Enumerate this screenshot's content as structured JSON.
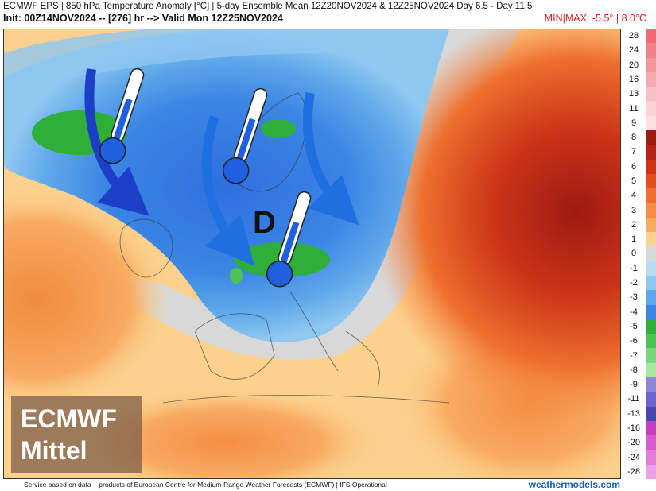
{
  "header": {
    "line1": "ECMWF EPS | 850 hPa Temperature Anomaly [°C] | 5-day Ensemble Mean 12Z20NOV2024 & 12Z25NOV2024   Day 6.5 - Day 11.5",
    "line2": "Init: 00Z14NOV2024 -- [276] hr --> Valid Mon 12Z25NOV2024",
    "minmax": "MIN|MAX: -5.5° | 8.0°C"
  },
  "map": {
    "pressure_center_label": "D",
    "badge_line1": "ECMWF",
    "badge_line2": "Mittel",
    "icons": [
      "thermometer-cold-icon",
      "thermometer-cold-icon",
      "thermometer-cold-icon",
      "arrow-icon",
      "arrow-icon",
      "arrow-icon"
    ],
    "colors": {
      "warm_strong": "#c8281e",
      "warm": "#f07a3a",
      "mild": "#f9c77f",
      "neutral": "#d6d6d6",
      "cool": "#8fc7f0",
      "cold": "#2f6fe0",
      "anomaly_green": "#2fae3a",
      "arrow": "#1f6fe0"
    }
  },
  "legend": [
    {
      "label": "28",
      "color": "#f06b75"
    },
    {
      "label": "24",
      "color": "#f28088"
    },
    {
      "label": "20",
      "color": "#f4959c"
    },
    {
      "label": "16",
      "color": "#f6aab0"
    },
    {
      "label": "13",
      "color": "#f8bfc4"
    },
    {
      "label": "11",
      "color": "#fad3d6"
    },
    {
      "label": "9",
      "color": "#fbe0e2"
    },
    {
      "label": "8",
      "color": "#9e1a12"
    },
    {
      "label": "7",
      "color": "#b52216"
    },
    {
      "label": "6",
      "color": "#cc3418"
    },
    {
      "label": "5",
      "color": "#e04e1f"
    },
    {
      "label": "4",
      "color": "#ee6f2e"
    },
    {
      "label": "3",
      "color": "#f58d45"
    },
    {
      "label": "2",
      "color": "#f8aa61"
    },
    {
      "label": "1",
      "color": "#fbd18d"
    },
    {
      "label": "0",
      "color": "#d8d8d8"
    },
    {
      "label": "-1",
      "color": "#b7ddf5"
    },
    {
      "label": "-2",
      "color": "#8fc7f0"
    },
    {
      "label": "-3",
      "color": "#5ea7ea"
    },
    {
      "label": "-4",
      "color": "#3b86e4"
    },
    {
      "label": "-5",
      "color": "#2fae3a"
    },
    {
      "label": "-6",
      "color": "#4cc354"
    },
    {
      "label": "-7",
      "color": "#7bd67b"
    },
    {
      "label": "-8",
      "color": "#a9e6a3"
    },
    {
      "label": "-9",
      "color": "#8f86d8"
    },
    {
      "label": "-11",
      "color": "#6f62c8"
    },
    {
      "label": "-13",
      "color": "#5040b0"
    },
    {
      "label": "-16",
      "color": "#c83cc0"
    },
    {
      "label": "-20",
      "color": "#d85ccf"
    },
    {
      "label": "-24",
      "color": "#e27ed9"
    },
    {
      "label": "-28",
      "color": "#eba2e4"
    }
  ],
  "footer": {
    "credit": "Service based on data + products of European Centre for Medium-Range Weather Forecasts (ECMWF) | IFS Operational",
    "brand": "weathermodels.com"
  }
}
